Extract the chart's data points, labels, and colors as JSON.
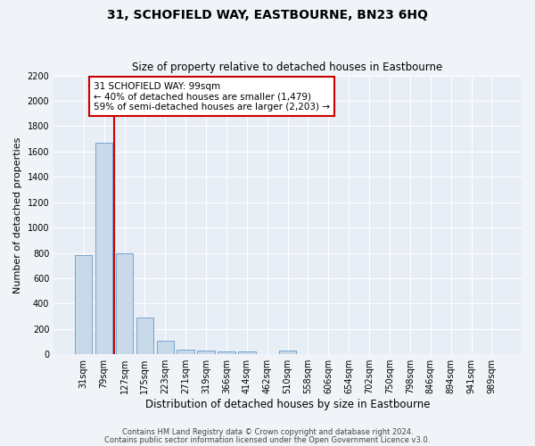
{
  "title": "31, SCHOFIELD WAY, EASTBOURNE, BN23 6HQ",
  "subtitle": "Size of property relative to detached houses in Eastbourne",
  "xlabel": "Distribution of detached houses by size in Eastbourne",
  "ylabel": "Number of detached properties",
  "categories": [
    "31sqm",
    "79sqm",
    "127sqm",
    "175sqm",
    "223sqm",
    "271sqm",
    "319sqm",
    "366sqm",
    "414sqm",
    "462sqm",
    "510sqm",
    "558sqm",
    "606sqm",
    "654sqm",
    "702sqm",
    "750sqm",
    "798sqm",
    "846sqm",
    "894sqm",
    "941sqm",
    "989sqm"
  ],
  "values": [
    780,
    1670,
    800,
    290,
    110,
    38,
    28,
    22,
    20,
    0,
    30,
    0,
    0,
    0,
    0,
    0,
    0,
    0,
    0,
    0,
    0
  ],
  "bar_color": "#c8d9ea",
  "bar_edge_color": "#6699cc",
  "vline_x": 1.5,
  "vline_color": "#cc0000",
  "annotation_text": "31 SCHOFIELD WAY: 99sqm\n← 40% of detached houses are smaller (1,479)\n59% of semi-detached houses are larger (2,203) →",
  "annotation_box_color": "#ffffff",
  "annotation_box_edge": "#cc0000",
  "ylim": [
    0,
    2200
  ],
  "yticks": [
    0,
    200,
    400,
    600,
    800,
    1000,
    1200,
    1400,
    1600,
    1800,
    2000,
    2200
  ],
  "footer1": "Contains HM Land Registry data © Crown copyright and database right 2024.",
  "footer2": "Contains public sector information licensed under the Open Government Licence v3.0.",
  "background_color": "#f0f4f8",
  "plot_bg_color": "#e8eef5",
  "grid_color": "#ffffff",
  "title_fontsize": 10,
  "subtitle_fontsize": 8.5,
  "ylabel_fontsize": 8,
  "xlabel_fontsize": 8.5,
  "tick_fontsize": 7,
  "footer_fontsize": 6,
  "annot_fontsize": 7.5
}
